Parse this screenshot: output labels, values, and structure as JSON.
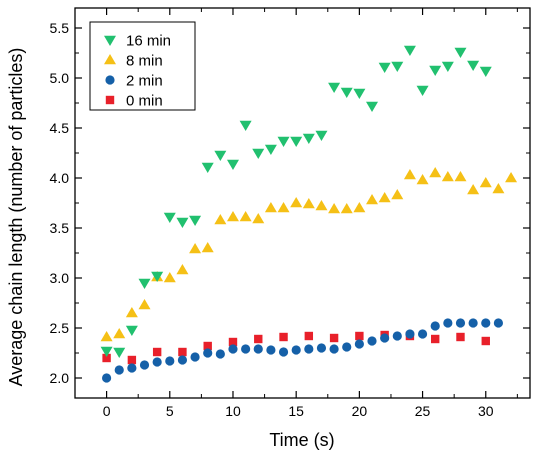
{
  "chart_data": {
    "type": "scatter",
    "title": "",
    "xlabel": "Time (s)",
    "ylabel": "Average chain length (number of particles)",
    "xlim": [
      -2.5,
      33.5
    ],
    "ylim": [
      1.8,
      5.7
    ],
    "xticks": [
      0,
      5,
      10,
      15,
      20,
      25,
      30
    ],
    "yticks": [
      2.0,
      2.5,
      3.0,
      3.5,
      4.0,
      4.5,
      5.0,
      5.5
    ],
    "xtick_labels": [
      "0",
      "5",
      "10",
      "15",
      "20",
      "25",
      "30"
    ],
    "ytick_labels": [
      "2.0",
      "2.5",
      "3.0",
      "3.5",
      "4.0",
      "4.5",
      "5.0",
      "5.5"
    ],
    "grid": false,
    "legend_position": "top-left",
    "series": [
      {
        "name": "16 min",
        "marker": "triangle-down",
        "color": "#21c06f",
        "x": [
          0,
          1,
          2,
          3,
          4,
          5,
          6,
          7,
          8,
          9,
          10,
          11,
          12,
          13,
          14,
          15,
          16,
          17,
          18,
          19,
          20,
          21,
          22,
          23,
          24,
          25,
          26,
          27,
          28,
          29,
          30
        ],
        "y": [
          2.27,
          2.26,
          2.48,
          2.95,
          3.02,
          3.61,
          3.56,
          3.58,
          4.11,
          4.23,
          4.14,
          4.53,
          4.25,
          4.29,
          4.37,
          4.37,
          4.4,
          4.43,
          4.91,
          4.86,
          4.85,
          4.72,
          5.11,
          5.12,
          5.28,
          4.88,
          5.08,
          5.12,
          5.26,
          5.13,
          5.07
        ]
      },
      {
        "name": "8 min",
        "marker": "triangle-up",
        "color": "#f5c016",
        "x": [
          0,
          1,
          2,
          3,
          4,
          5,
          6,
          7,
          8,
          9,
          10,
          11,
          12,
          13,
          14,
          15,
          16,
          17,
          18,
          19,
          20,
          21,
          22,
          23,
          24,
          25,
          26,
          27,
          28,
          29,
          30,
          31,
          32
        ],
        "y": [
          2.41,
          2.44,
          2.65,
          2.73,
          3.01,
          3.0,
          3.08,
          3.29,
          3.3,
          3.58,
          3.61,
          3.61,
          3.59,
          3.7,
          3.7,
          3.75,
          3.74,
          3.72,
          3.69,
          3.69,
          3.7,
          3.78,
          3.8,
          3.83,
          4.03,
          3.98,
          4.05,
          4.01,
          4.01,
          3.88,
          3.95,
          3.89,
          4.0
        ]
      },
      {
        "name": "2 min",
        "marker": "circle",
        "color": "#1560a8",
        "x": [
          0,
          1,
          2,
          3,
          4,
          5,
          6,
          7,
          8,
          9,
          10,
          11,
          12,
          13,
          14,
          15,
          16,
          17,
          18,
          19,
          20,
          21,
          22,
          23,
          24,
          25,
          26,
          27,
          28,
          29,
          30,
          31
        ],
        "y": [
          2.0,
          2.08,
          2.1,
          2.13,
          2.16,
          2.17,
          2.18,
          2.21,
          2.25,
          2.24,
          2.29,
          2.29,
          2.29,
          2.28,
          2.26,
          2.28,
          2.29,
          2.3,
          2.29,
          2.31,
          2.34,
          2.37,
          2.4,
          2.42,
          2.44,
          2.44,
          2.52,
          2.55,
          2.55,
          2.55,
          2.55,
          2.55
        ]
      },
      {
        "name": "0 min",
        "marker": "square",
        "color": "#e8202a",
        "x": [
          0,
          2,
          4,
          6,
          8,
          10,
          12,
          14,
          16,
          18,
          20,
          22,
          24,
          26,
          28,
          30
        ],
        "y": [
          2.2,
          2.18,
          2.26,
          2.26,
          2.32,
          2.36,
          2.39,
          2.41,
          2.42,
          2.4,
          2.42,
          2.43,
          2.42,
          2.39,
          2.41,
          2.37
        ]
      }
    ]
  }
}
